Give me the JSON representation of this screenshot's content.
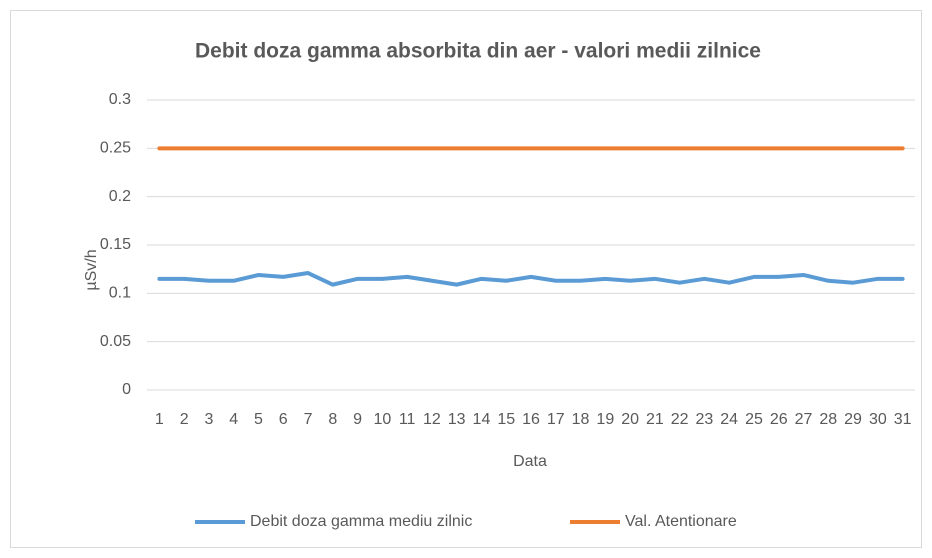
{
  "chart_data": {
    "type": "line",
    "title": "Debit doza gamma absorbita din aer - valori medii zilnice",
    "xlabel": "Data",
    "ylabel": "µSv/h",
    "categories": [
      "1",
      "2",
      "3",
      "4",
      "5",
      "6",
      "7",
      "8",
      "9",
      "10",
      "11",
      "12",
      "13",
      "14",
      "15",
      "16",
      "17",
      "18",
      "19",
      "20",
      "21",
      "22",
      "23",
      "24",
      "25",
      "26",
      "27",
      "28",
      "29",
      "30",
      "31"
    ],
    "series": [
      {
        "name": "Debit doza gamma mediu zilnic",
        "color": "#5b9bd5",
        "values": [
          0.115,
          0.115,
          0.113,
          0.113,
          0.119,
          0.117,
          0.121,
          0.109,
          0.115,
          0.115,
          0.117,
          0.113,
          0.109,
          0.115,
          0.113,
          0.117,
          0.113,
          0.113,
          0.115,
          0.113,
          0.115,
          0.111,
          0.115,
          0.111,
          0.117,
          0.117,
          0.119,
          0.113,
          0.111,
          0.115,
          0.115
        ]
      },
      {
        "name": "Val. Atentionare",
        "color": "#ed7d31",
        "values": [
          0.25,
          0.25,
          0.25,
          0.25,
          0.25,
          0.25,
          0.25,
          0.25,
          0.25,
          0.25,
          0.25,
          0.25,
          0.25,
          0.25,
          0.25,
          0.25,
          0.25,
          0.25,
          0.25,
          0.25,
          0.25,
          0.25,
          0.25,
          0.25,
          0.25,
          0.25,
          0.25,
          0.25,
          0.25,
          0.25,
          0.25
        ]
      }
    ],
    "ylim": [
      0,
      0.3
    ],
    "yticks": [
      0,
      0.05,
      0.1,
      0.15,
      0.2,
      0.25,
      0.3
    ],
    "grid": true,
    "legend": "bottom"
  }
}
